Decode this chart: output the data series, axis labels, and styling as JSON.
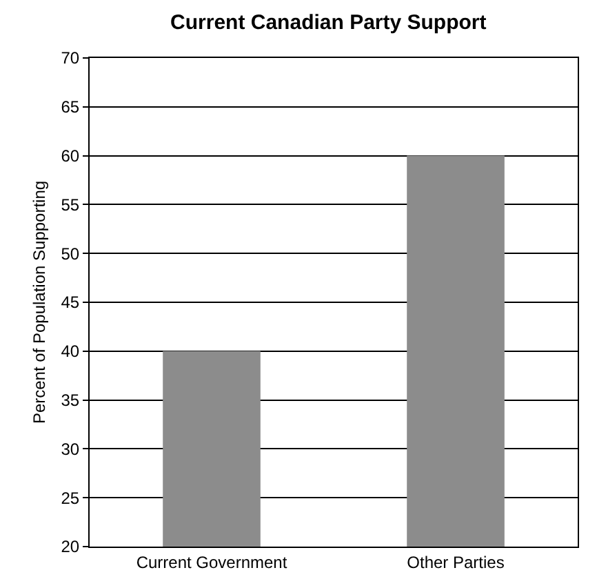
{
  "chart_data": {
    "type": "bar",
    "title": "Current Canadian Party Support",
    "ylabel": "Percent of Population Supporting",
    "categories": [
      "Current Government",
      "Other Parties"
    ],
    "values": [
      40,
      60
    ],
    "color": "#8c8c8c",
    "ylim": [
      20,
      70
    ],
    "yticks": [
      20,
      25,
      30,
      35,
      40,
      45,
      50,
      55,
      60,
      65,
      70
    ],
    "grid": "y"
  }
}
